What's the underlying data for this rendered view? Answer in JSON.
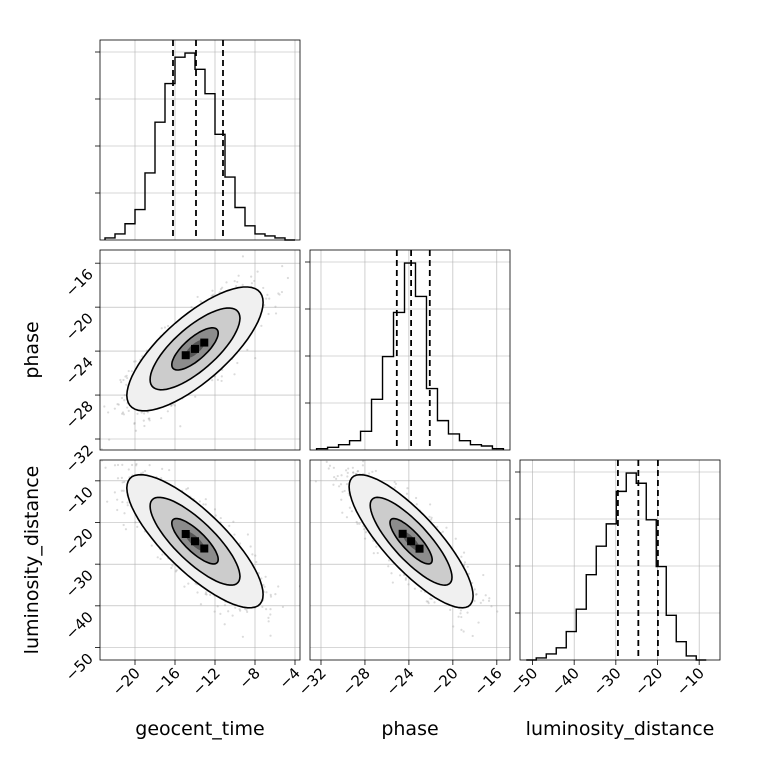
{
  "chart_data": {
    "type": "corner",
    "parameters": [
      "geocent_time",
      "phase",
      "luminosity_distance"
    ],
    "axis_labels": {
      "x": [
        "geocent_time",
        "phase",
        "luminosity_distance"
      ],
      "y": [
        "",
        "phase",
        "luminosity_distance"
      ]
    },
    "ranges": {
      "geocent_time": [
        -23.5,
        -3.5
      ],
      "phase": [
        -33,
        -14.8
      ],
      "luminosity_distance": [
        -53,
        -5
      ]
    },
    "ticks": {
      "geocent_time": [
        -20,
        -16,
        -12,
        -8,
        -4
      ],
      "phase": [
        -32,
        -28,
        -24,
        -20,
        -16
      ],
      "luminosity_distance": [
        -50,
        -40,
        -30,
        -20,
        -10
      ]
    },
    "tick_labels": {
      "geocent_time": [
        "−20",
        "−16",
        "−12",
        "−8",
        "−4"
      ],
      "phase": [
        "−32",
        "−28",
        "−24",
        "−20",
        "−16"
      ],
      "luminosity_distance": [
        "−50",
        "−40",
        "−30",
        "−20",
        "−10"
      ]
    },
    "grid": true,
    "quantiles": {
      "geocent_time": [
        -16.2,
        -13.9,
        -11.2
      ],
      "phase": [
        -25.1,
        -23.8,
        -22.1
      ],
      "luminosity_distance": [
        -29.5,
        -24.6,
        -19.9
      ]
    },
    "histograms": [
      {
        "parameter": "geocent_time",
        "bin_edges": [
          -23.0,
          -22.0,
          -21.0,
          -20.0,
          -19.0,
          -18.0,
          -17.0,
          -16.0,
          -15.0,
          -14.0,
          -13.0,
          -12.0,
          -11.0,
          -10.0,
          -9.0,
          -8.0,
          -7.0,
          -6.0,
          -5.0,
          -4.0
        ],
        "counts": [
          1,
          3,
          8,
          15,
          33,
          58,
          77,
          90,
          92,
          84,
          72,
          52,
          31,
          16,
          7,
          3,
          2,
          1,
          0
        ]
      },
      {
        "parameter": "phase",
        "bin_edges": [
          -32.4,
          -31.4,
          -30.4,
          -29.4,
          -28.4,
          -27.4,
          -26.4,
          -25.4,
          -24.4,
          -23.4,
          -22.4,
          -21.4,
          -20.4,
          -19.4,
          -18.4,
          -17.4,
          -16.4,
          -15.4
        ],
        "counts": [
          1,
          2,
          4,
          7,
          14,
          38,
          70,
          103,
          140,
          115,
          46,
          22,
          12,
          7,
          4,
          3,
          1
        ]
      },
      {
        "parameter": "luminosity_distance",
        "bin_edges": [
          -51.5,
          -49.1,
          -46.7,
          -44.3,
          -41.9,
          -39.5,
          -37.1,
          -34.7,
          -32.3,
          -29.9,
          -27.5,
          -25.1,
          -22.7,
          -20.3,
          -17.9,
          -15.5,
          -13.1,
          -10.7,
          -8.3
        ],
        "counts": [
          0,
          1,
          3,
          6,
          14,
          25,
          42,
          56,
          67,
          83,
          92,
          87,
          69,
          46,
          22,
          9,
          2,
          0
        ]
      }
    ],
    "joint_distributions": [
      {
        "x": "geocent_time",
        "y": "phase",
        "mean": [
          -14.0,
          -23.8
        ],
        "std": [
          2.9,
          2.4
        ],
        "correlation": 0.75,
        "contour_levels": [
          "inner",
          "middle",
          "outer"
        ]
      },
      {
        "x": "geocent_time",
        "y": "luminosity_distance",
        "mean": [
          -14.0,
          -24.5
        ],
        "std": [
          2.9,
          6.8
        ],
        "correlation": -0.8,
        "contour_levels": [
          "inner",
          "middle",
          "outer"
        ]
      },
      {
        "x": "phase",
        "y": "luminosity_distance",
        "mean": [
          -23.8,
          -24.5
        ],
        "std": [
          2.4,
          6.8
        ],
        "correlation": -0.82,
        "contour_levels": [
          "inner",
          "middle",
          "outer"
        ]
      }
    ],
    "colors": {
      "line": "#000000",
      "grid": "#b0b0b0",
      "points": "#999999",
      "fill_levels": [
        "#f0f0f0",
        "#cccccc",
        "#8c8c8c",
        "#000000"
      ]
    }
  }
}
